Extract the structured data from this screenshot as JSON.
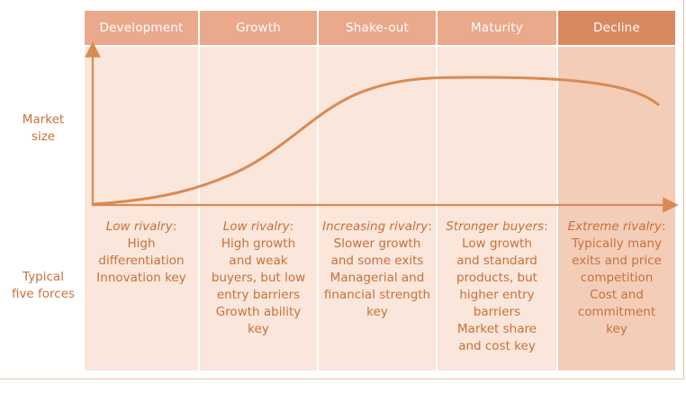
{
  "row_labels": {
    "market_size": [
      "Market",
      "size"
    ],
    "five_forces": [
      "Typical",
      "five forces"
    ]
  },
  "stages": [
    {
      "name": "Development",
      "lead": "Low rivalry",
      "lines": [
        "High",
        "differentiation",
        "Innovation key"
      ]
    },
    {
      "name": "Growth",
      "lead": "Low rivalry",
      "lines": [
        "High growth",
        "and weak",
        "buyers, but low",
        "entry barriers",
        "Growth ability",
        "key"
      ]
    },
    {
      "name": "Shake-out",
      "lead": "Increasing rivalry",
      "lines": [
        "Slower growth",
        "and some exits",
        "Managerial and",
        "financial strength",
        "key"
      ]
    },
    {
      "name": "Maturity",
      "lead": "Stronger buyers",
      "lines": [
        "Low growth",
        "and standard",
        "products, but",
        "higher entry",
        "barriers",
        "Market share",
        "and cost key"
      ]
    },
    {
      "name": "Decline",
      "lead": "Extreme rivalry",
      "lines": [
        "Typically many",
        "exits and price",
        "competition",
        "Cost and",
        "commitment",
        "key"
      ]
    }
  ],
  "colors": {
    "accent": "#d98a55",
    "text": "#c9703a",
    "header_light": "#e9a98a",
    "header_dark": "#d9895f",
    "body_light": "#fae6da",
    "body_dark": "#f3cdb8"
  }
}
